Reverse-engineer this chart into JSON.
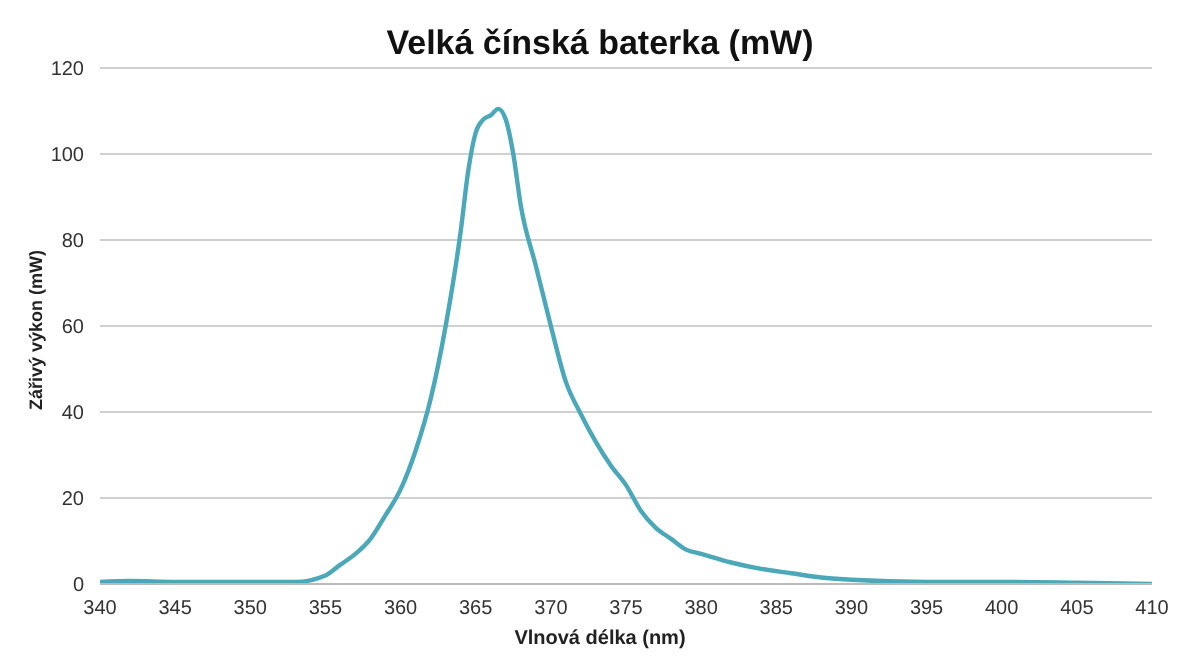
{
  "chart_data": {
    "type": "line",
    "title": "Velká čínská baterka (mW)",
    "xlabel": "Vlnová délka (nm)",
    "ylabel": "Zářivý výkon (mW)",
    "x": [
      340,
      342,
      345,
      348,
      350,
      353,
      355,
      356,
      357,
      358,
      359,
      360,
      361,
      362,
      363,
      364,
      364.5,
      365,
      365.5,
      366,
      366.5,
      367,
      367.5,
      368,
      369,
      370,
      371,
      372,
      373,
      374,
      375,
      376,
      377,
      378,
      379,
      380,
      382,
      384,
      386,
      388,
      390,
      395,
      400,
      405,
      410
    ],
    "series": [
      {
        "color": "#4aa8b8",
        "values": [
          0.5,
          0.7,
          0.5,
          0.5,
          0.5,
          0.5,
          2,
          4.5,
          7,
          10.5,
          16,
          22,
          31,
          43,
          60,
          82,
          96,
          105,
          108,
          109,
          110.5,
          108,
          100,
          88,
          74,
          60,
          47,
          39.5,
          33,
          27.5,
          23,
          17,
          13,
          10.5,
          8,
          7,
          5,
          3.5,
          2.5,
          1.5,
          1,
          0.5,
          0.5,
          0.3,
          0
        ]
      }
    ],
    "xlim": [
      340,
      410
    ],
    "xticks": [
      340,
      345,
      350,
      355,
      360,
      365,
      370,
      375,
      380,
      385,
      390,
      395,
      400,
      405,
      410
    ],
    "ylim": [
      0,
      120
    ],
    "yticks": [
      0,
      20,
      40,
      60,
      80,
      100,
      120
    ],
    "grid": "y",
    "marker": "none",
    "line_style": "solid"
  }
}
